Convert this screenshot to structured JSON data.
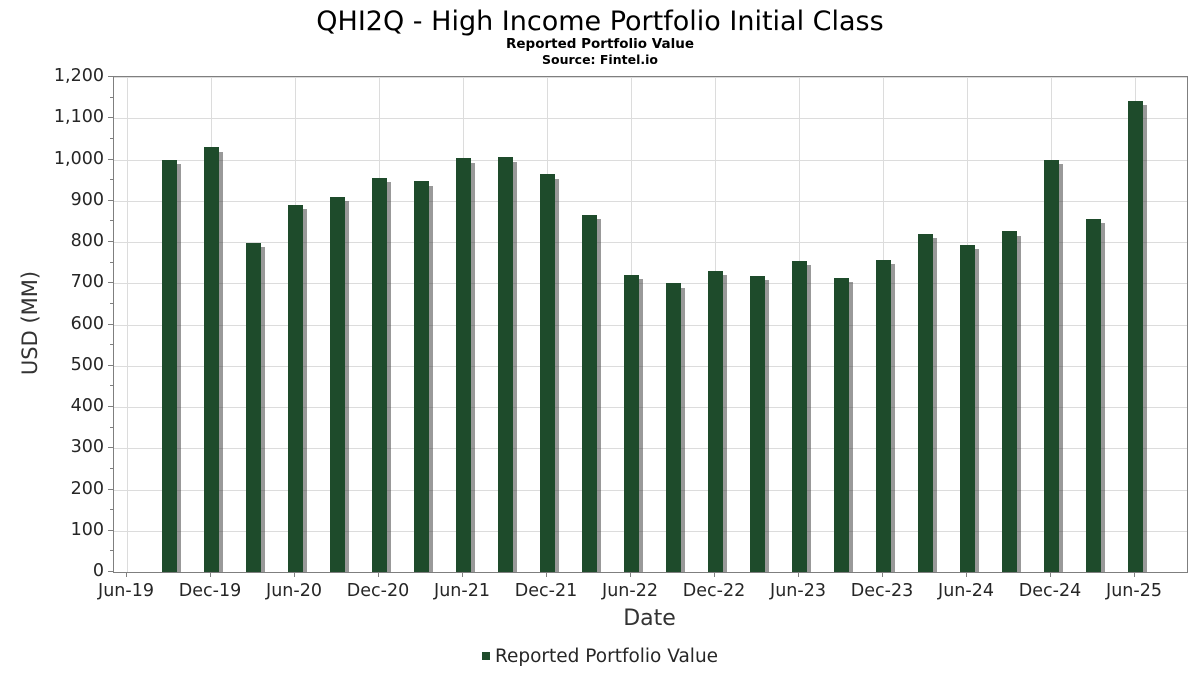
{
  "header": {
    "title": "QHI2Q - High Income Portfolio Initial Class",
    "subtitle": "Reported Portfolio Value",
    "source": "Source: Fintel.io"
  },
  "chart_data": {
    "type": "bar",
    "title": "QHI2Q - High Income Portfolio Initial Class",
    "subtitle": "Reported Portfolio Value",
    "source": "Source: Fintel.io",
    "xlabel": "Date",
    "ylabel": "USD (MM)",
    "ylim": [
      0,
      1200
    ],
    "ytick_step": 100,
    "ytick_labels": [
      "0",
      "100",
      "200",
      "300",
      "400",
      "500",
      "600",
      "700",
      "800",
      "900",
      "1,000",
      "1,100",
      "1,200"
    ],
    "x_tick_labels": [
      "Jun-19",
      "Dec-19",
      "Jun-20",
      "Dec-20",
      "Jun-21",
      "Dec-21",
      "Jun-22",
      "Dec-22",
      "Jun-23",
      "Dec-23",
      "Jun-24",
      "Dec-24",
      "Jun-25"
    ],
    "grid": true,
    "legend_position": "bottom-center",
    "legend_entries": [
      "Reported Portfolio Value"
    ],
    "categories": [
      "Sep-19",
      "Dec-19",
      "Mar-20",
      "Jun-20",
      "Sep-20",
      "Dec-20",
      "Mar-21",
      "Jun-21",
      "Sep-21",
      "Dec-21",
      "Mar-22",
      "Jun-22",
      "Sep-22",
      "Dec-22",
      "Mar-23",
      "Jun-23",
      "Sep-23",
      "Dec-23",
      "Mar-24",
      "Jun-24",
      "Sep-24",
      "Dec-24",
      "Mar-25",
      "Jun-25"
    ],
    "values": [
      1000,
      1030,
      798,
      890,
      910,
      956,
      947,
      1003,
      1005,
      964,
      866,
      721,
      700,
      731,
      718,
      755,
      713,
      757,
      820,
      793,
      826,
      1000,
      856,
      1142
    ],
    "colors": {
      "bar": "#1e4b2b",
      "bar_shadow": "rgba(70,70,70,0.55)",
      "grid": "#dcdcdc",
      "spine": "#7f7f7f",
      "tick_text": "#262626",
      "title_text": "#000000"
    }
  }
}
